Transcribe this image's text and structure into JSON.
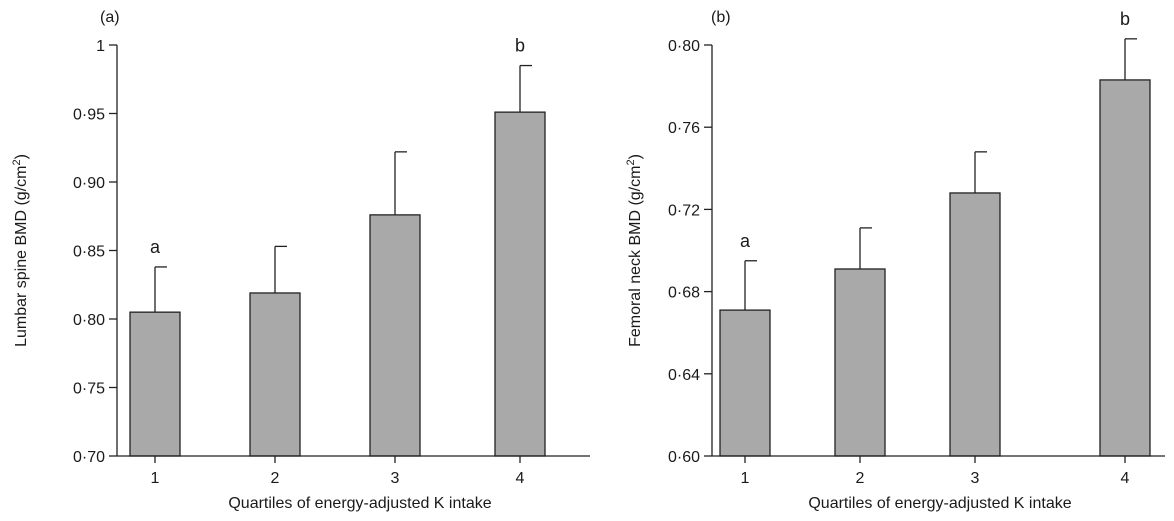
{
  "chart_data": [
    {
      "type": "bar",
      "panel_label": "(a)",
      "categories": [
        "1",
        "2",
        "3",
        "4"
      ],
      "values": [
        0.805,
        0.819,
        0.876,
        0.951
      ],
      "error_upper": [
        0.838,
        0.853,
        0.922,
        0.985
      ],
      "significance_labels": [
        "a",
        "",
        "",
        "b"
      ],
      "ylim": [
        0.7,
        1.0
      ],
      "yticks": [
        0.7,
        0.75,
        0.8,
        0.85,
        0.9,
        0.95,
        1.0
      ],
      "ytick_labels": [
        "0·70",
        "0·75",
        "0·80",
        "0·85",
        "0·90",
        "0·95",
        "1"
      ],
      "ylabel": "Lumbar spine BMD (g/cm",
      "ylabel_sup": "2",
      "ylabel_end": ")",
      "xlabel": "Quartiles of energy-adjusted K intake",
      "bar_color": "#a9a9a9",
      "grid": false
    },
    {
      "type": "bar",
      "panel_label": "(b)",
      "categories": [
        "1",
        "2",
        "3",
        "4"
      ],
      "values": [
        0.671,
        0.691,
        0.728,
        0.783
      ],
      "error_upper": [
        0.695,
        0.711,
        0.748,
        0.803
      ],
      "significance_labels": [
        "a",
        "",
        "",
        "b"
      ],
      "ylim": [
        0.6,
        0.8
      ],
      "yticks": [
        0.6,
        0.64,
        0.68,
        0.72,
        0.76,
        0.8
      ],
      "ytick_labels": [
        "0·60",
        "0·64",
        "0·68",
        "0·72",
        "0·76",
        "0·80"
      ],
      "ylabel": "Femoral neck BMD (g/cm",
      "ylabel_sup": "2",
      "ylabel_end": ")",
      "xlabel": "Quartiles of energy-adjusted K intake",
      "bar_color": "#a9a9a9",
      "grid": false
    }
  ]
}
